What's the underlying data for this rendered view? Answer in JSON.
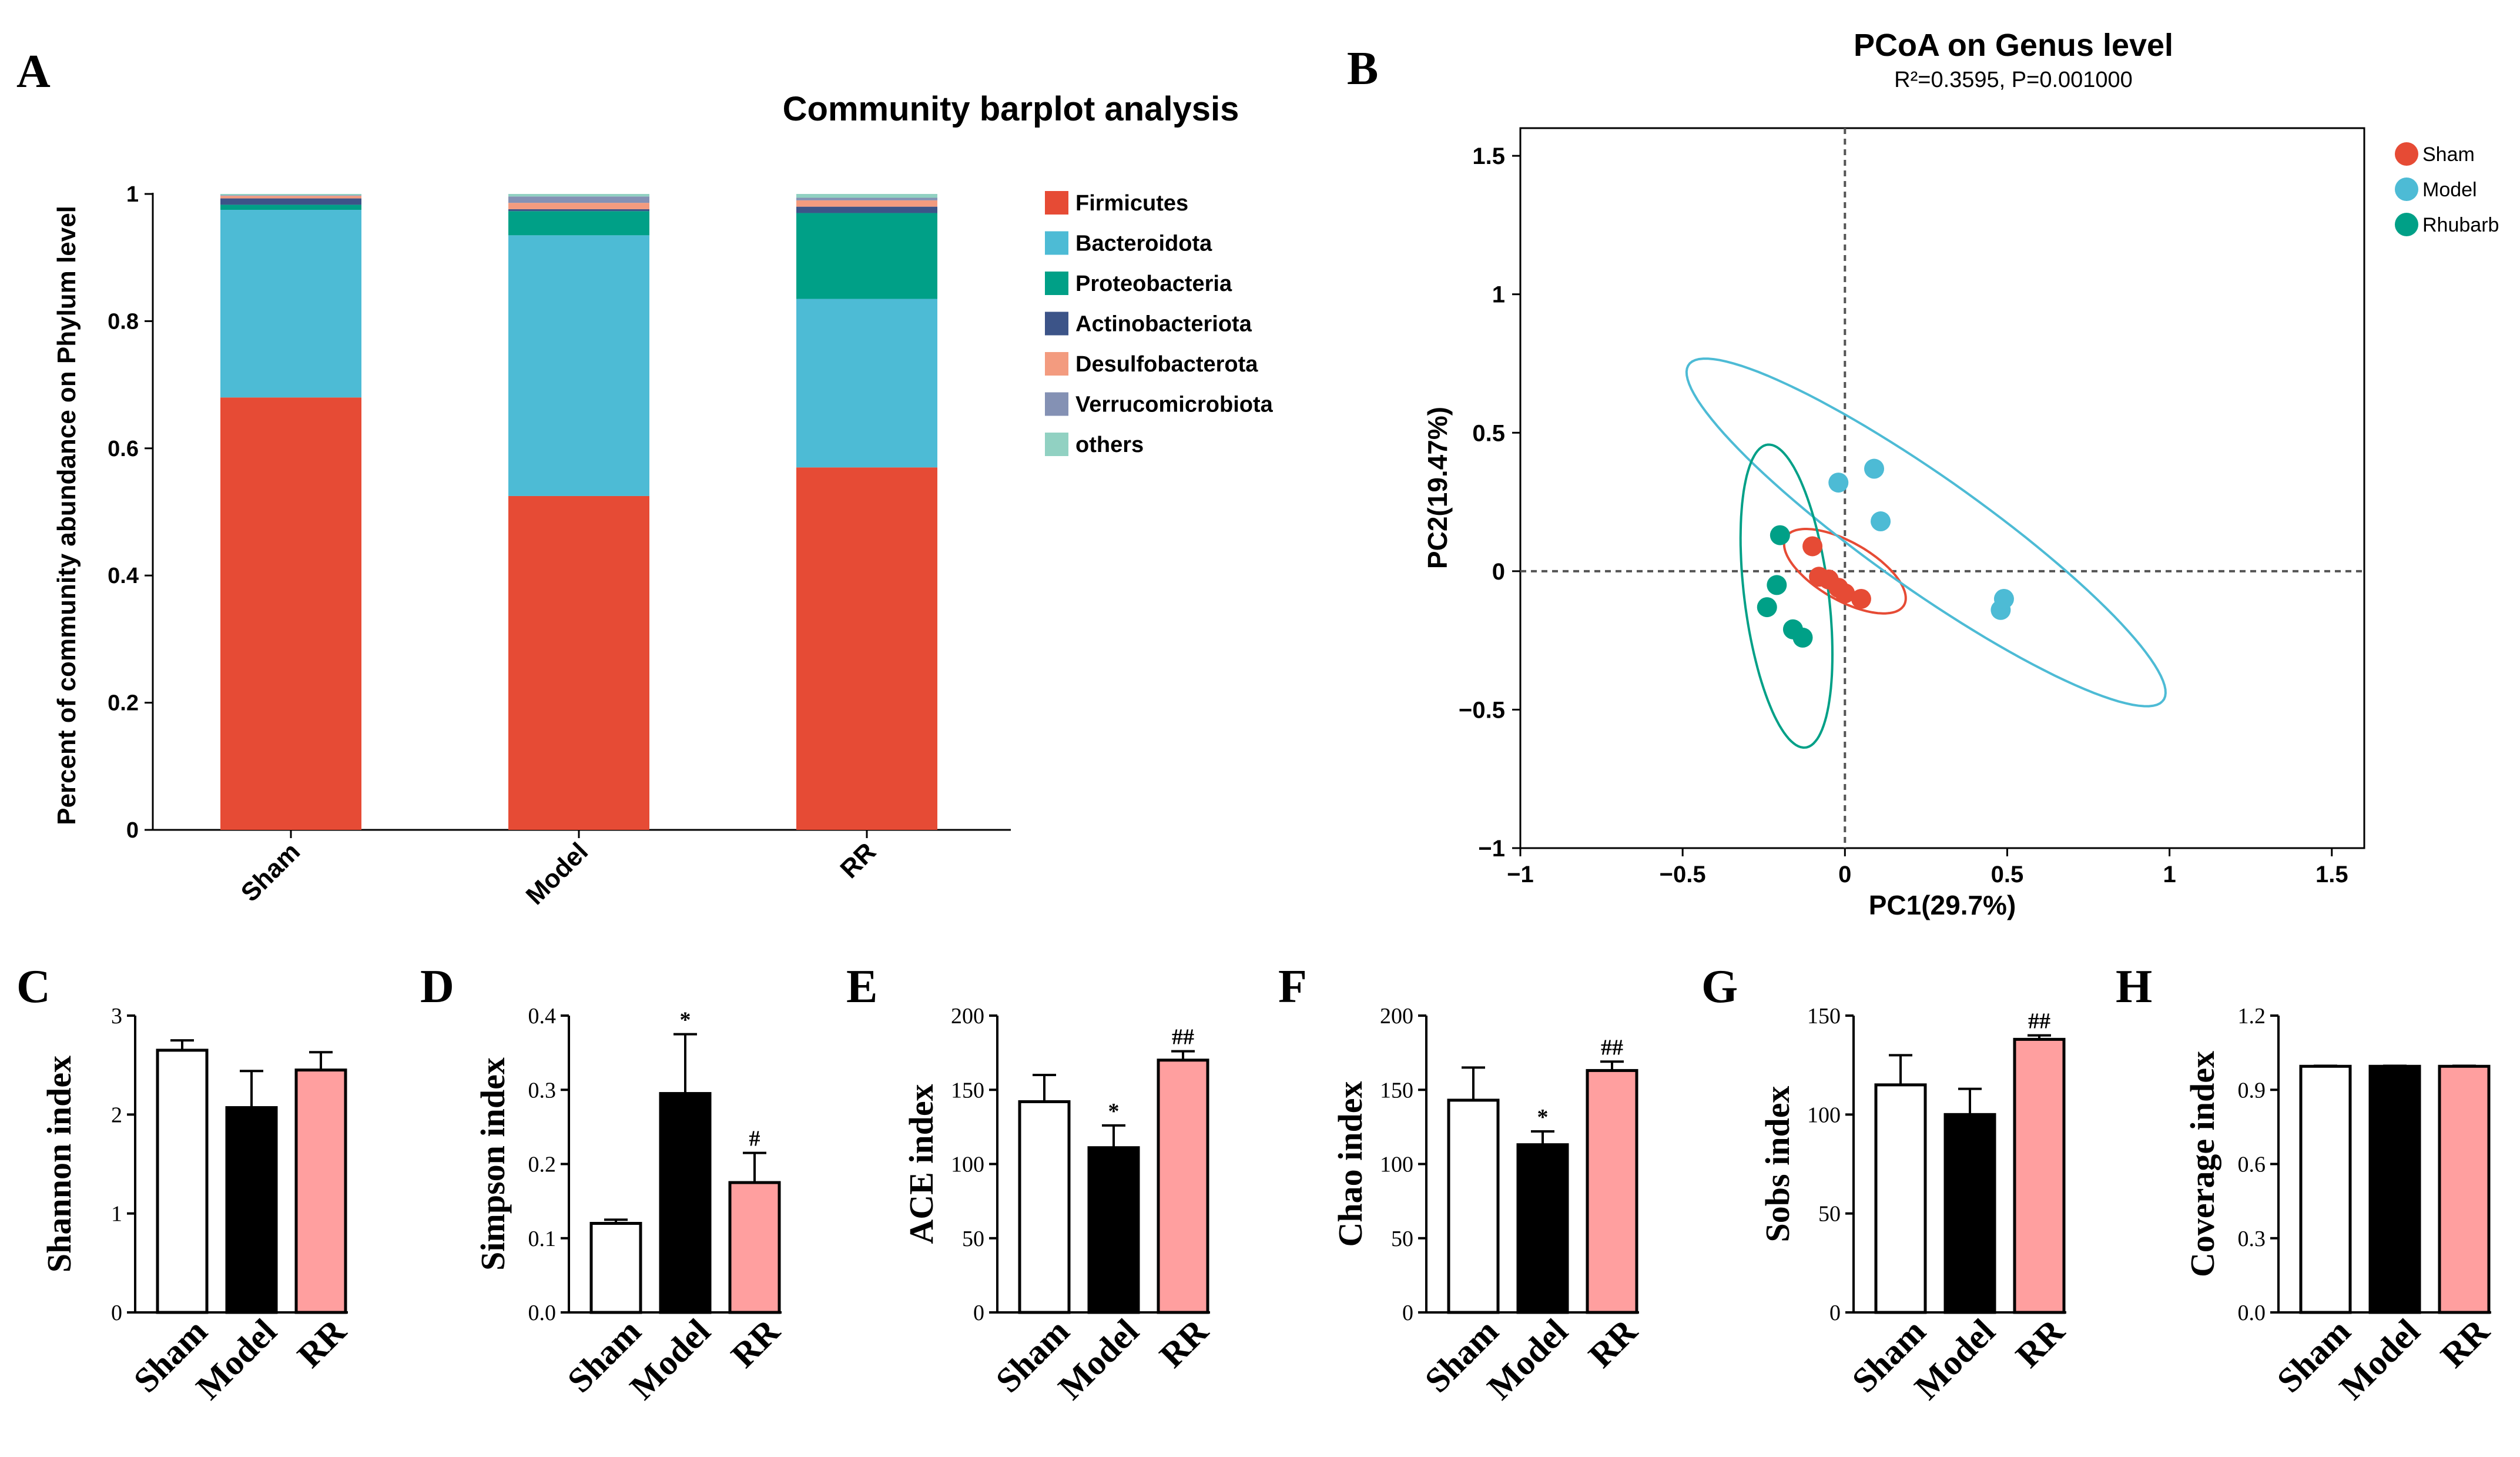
{
  "panel_letters": {
    "A": "A",
    "B": "B",
    "C": "C",
    "D": "D",
    "E": "E",
    "F": "F",
    "G": "G",
    "H": "H"
  },
  "colors": {
    "Firmicutes": "#E64B35",
    "Bacteroidota": "#4DBBD5",
    "Proteobacteria": "#00A087",
    "Actinobacteriota": "#3C5488",
    "Desulfobacterota": "#F39B7F",
    "Verrucomicrobiota": "#8491B4",
    "others": "#91D1C2",
    "sham_point": "#E64B35",
    "model_point": "#4DBBD5",
    "rhubarb_point": "#00A087",
    "rr_bar": "#FF9F9F",
    "model_bar": "#000000",
    "sham_bar": "#FFFFFF"
  },
  "chart_data": [
    {
      "id": "A",
      "type": "bar",
      "stacked": true,
      "title": "Community barplot analysis",
      "xlabel": "",
      "ylabel": "Percent of community abundance on Phylum level",
      "ylim": [
        0,
        1
      ],
      "yticks": [
        "0",
        "0.2",
        "0.4",
        "0.6",
        "0.8",
        "1"
      ],
      "categories": [
        "Sham",
        "Model",
        "RR"
      ],
      "series": [
        {
          "name": "Firmicutes",
          "values": [
            0.68,
            0.525,
            0.57
          ]
        },
        {
          "name": "Bacteroidota",
          "values": [
            0.295,
            0.41,
            0.265
          ]
        },
        {
          "name": "Proteobacteria",
          "values": [
            0.008,
            0.038,
            0.135
          ]
        },
        {
          "name": "Actinobacteriota",
          "values": [
            0.01,
            0.003,
            0.01
          ]
        },
        {
          "name": "Desulfobacterota",
          "values": [
            0.004,
            0.01,
            0.01
          ]
        },
        {
          "name": "Verrucomicrobiota",
          "values": [
            0.001,
            0.01,
            0.004
          ]
        },
        {
          "name": "others",
          "values": [
            0.002,
            0.004,
            0.006
          ]
        }
      ]
    },
    {
      "id": "B",
      "type": "scatter",
      "title": "PCoA on Genus level",
      "subtitle": "R²=0.3595, P=0.001000",
      "xlabel": "PC1(29.7%)",
      "ylabel": "PC2(19.47%)",
      "xlim": [
        -1,
        1.6
      ],
      "ylim": [
        -1,
        1.6
      ],
      "xticks": [
        -1,
        -0.5,
        0,
        0.5,
        1,
        1.5
      ],
      "xtick_labels": [
        "−1",
        "−0.5",
        "0",
        "0.5",
        "1",
        "1.5"
      ],
      "yticks": [
        -1,
        -0.5,
        0,
        0.5,
        1,
        1.5
      ],
      "ytick_labels": [
        "−1",
        "−0.5",
        "0",
        "0.5",
        "1",
        "1.5"
      ],
      "legend_position": "top-right",
      "series": [
        {
          "name": "Sham",
          "x": [
            -0.1,
            -0.08,
            -0.05,
            -0.02,
            0.0,
            0.05
          ],
          "y": [
            0.09,
            -0.02,
            -0.03,
            -0.06,
            -0.08,
            -0.1
          ]
        },
        {
          "name": "Model",
          "x": [
            -0.02,
            0.09,
            0.11,
            0.48,
            0.49
          ],
          "y": [
            0.32,
            0.37,
            0.18,
            -0.14,
            -0.1
          ]
        },
        {
          "name": "Rhubarb",
          "x": [
            -0.2,
            -0.21,
            -0.24,
            -0.16,
            -0.13
          ],
          "y": [
            0.13,
            -0.05,
            -0.13,
            -0.21,
            -0.24
          ]
        }
      ],
      "ellipses": [
        {
          "name": "Sham",
          "cx": 0.0,
          "cy": 0.0,
          "rx": 0.22,
          "ry": 0.1,
          "angle_deg": -36
        },
        {
          "name": "Model",
          "cx": 0.25,
          "cy": 0.14,
          "rx": 0.95,
          "ry": 0.19,
          "angle_deg": -40
        },
        {
          "name": "Rhubarb",
          "cx": -0.18,
          "cy": -0.09,
          "rx": 0.55,
          "ry": 0.13,
          "angle_deg": -84
        }
      ]
    },
    {
      "id": "C",
      "type": "bar",
      "ylabel": "Shannon index",
      "categories": [
        "Sham",
        "Model",
        "RR"
      ],
      "values": [
        2.65,
        2.07,
        2.45
      ],
      "errors": [
        0.1,
        0.37,
        0.18
      ],
      "ylim": [
        0,
        3
      ],
      "yticks": [
        "0",
        "1",
        "2",
        "3"
      ],
      "annotations": [
        "",
        "",
        ""
      ]
    },
    {
      "id": "D",
      "type": "bar",
      "ylabel": "Simpson index",
      "categories": [
        "Sham",
        "Model",
        "RR"
      ],
      "values": [
        0.12,
        0.295,
        0.175
      ],
      "errors": [
        0.005,
        0.08,
        0.04
      ],
      "ylim": [
        0,
        0.4
      ],
      "yticks": [
        "0.0",
        "0.1",
        "0.2",
        "0.3",
        "0.4"
      ],
      "annotations": [
        "",
        "*",
        "#"
      ]
    },
    {
      "id": "E",
      "type": "bar",
      "ylabel": "ACE index",
      "categories": [
        "Sham",
        "Model",
        "RR"
      ],
      "values": [
        142,
        111,
        170
      ],
      "errors": [
        18,
        15,
        6
      ],
      "ylim": [
        0,
        200
      ],
      "yticks": [
        "0",
        "50",
        "100",
        "150",
        "200"
      ],
      "annotations": [
        "",
        "*",
        "##"
      ]
    },
    {
      "id": "F",
      "type": "bar",
      "ylabel": "Chao index",
      "categories": [
        "Sham",
        "Model",
        "RR"
      ],
      "values": [
        143,
        113,
        163
      ],
      "errors": [
        22,
        9,
        6
      ],
      "ylim": [
        0,
        200
      ],
      "yticks": [
        "0",
        "50",
        "100",
        "150",
        "200"
      ],
      "annotations": [
        "",
        "*",
        "##"
      ]
    },
    {
      "id": "G",
      "type": "bar",
      "ylabel": "Sobs index",
      "categories": [
        "Sham",
        "Model",
        "RR"
      ],
      "values": [
        115,
        100,
        138
      ],
      "errors": [
        15,
        13,
        2
      ],
      "ylim": [
        0,
        150
      ],
      "yticks": [
        "0",
        "50",
        "100",
        "150"
      ],
      "annotations": [
        "",
        "",
        "##"
      ]
    },
    {
      "id": "H",
      "type": "bar",
      "ylabel": "Coverage index",
      "categories": [
        "Sham",
        "Model",
        "RR"
      ],
      "values": [
        0.995,
        0.995,
        0.995
      ],
      "errors": [
        0.002,
        0.002,
        0.002
      ],
      "ylim": [
        0,
        1.2
      ],
      "yticks": [
        "0.0",
        "0.3",
        "0.6",
        "0.9",
        "1.2"
      ],
      "annotations": [
        "",
        "",
        ""
      ]
    }
  ]
}
